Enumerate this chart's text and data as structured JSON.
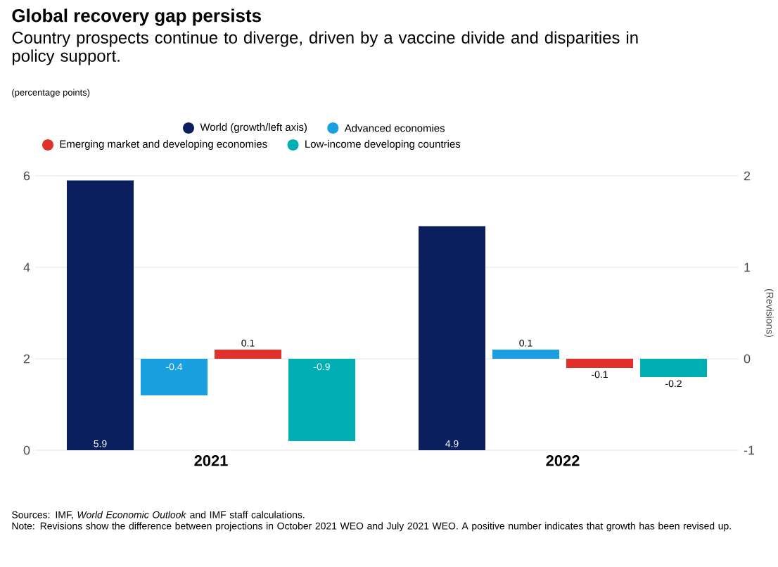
{
  "chart_data": {
    "type": "bar",
    "title": "Global recovery gap persists",
    "subtitle": "Country prospects continue to diverge, driven by a vaccine divide and disparities in policy support.",
    "categories": [
      "2021",
      "2022"
    ],
    "series": [
      {
        "name": "World (growth/left axis)",
        "color": "#0b1f5e",
        "values": [
          5.9,
          4.9
        ]
      },
      {
        "name": "Advanced economies",
        "color": "#1a9fe0",
        "values": [
          -0.4,
          0.1
        ],
        "axis": "y2"
      },
      {
        "name": "Emerging market and developing economies",
        "color": "#e0312a",
        "values": [
          0.1,
          -0.1
        ],
        "axis": "y2"
      },
      {
        "name": "Low-income developing countries",
        "color": "#00aeb3",
        "values": [
          -0.9,
          -0.2
        ],
        "axis": "y2"
      }
    ],
    "ylim": [
      0,
      6
    ],
    "yticks": [
      0,
      2,
      4,
      6
    ],
    "y2lim": [
      -1,
      2
    ],
    "y2ticks": [
      -1,
      0,
      1,
      2
    ],
    "y2label": "(Revisions)",
    "grid": "y",
    "legend": "top",
    "data_labels": true,
    "annotations": [
      "(percentage points)",
      "Sources: IMF, *World Economic Outlook* and IMF staff calculations.",
      "Note: Revisions show the difference between projections in October 2021 WEO and July 2021 WEO. A positive number indicates that growth has been revised up."
    ]
  }
}
